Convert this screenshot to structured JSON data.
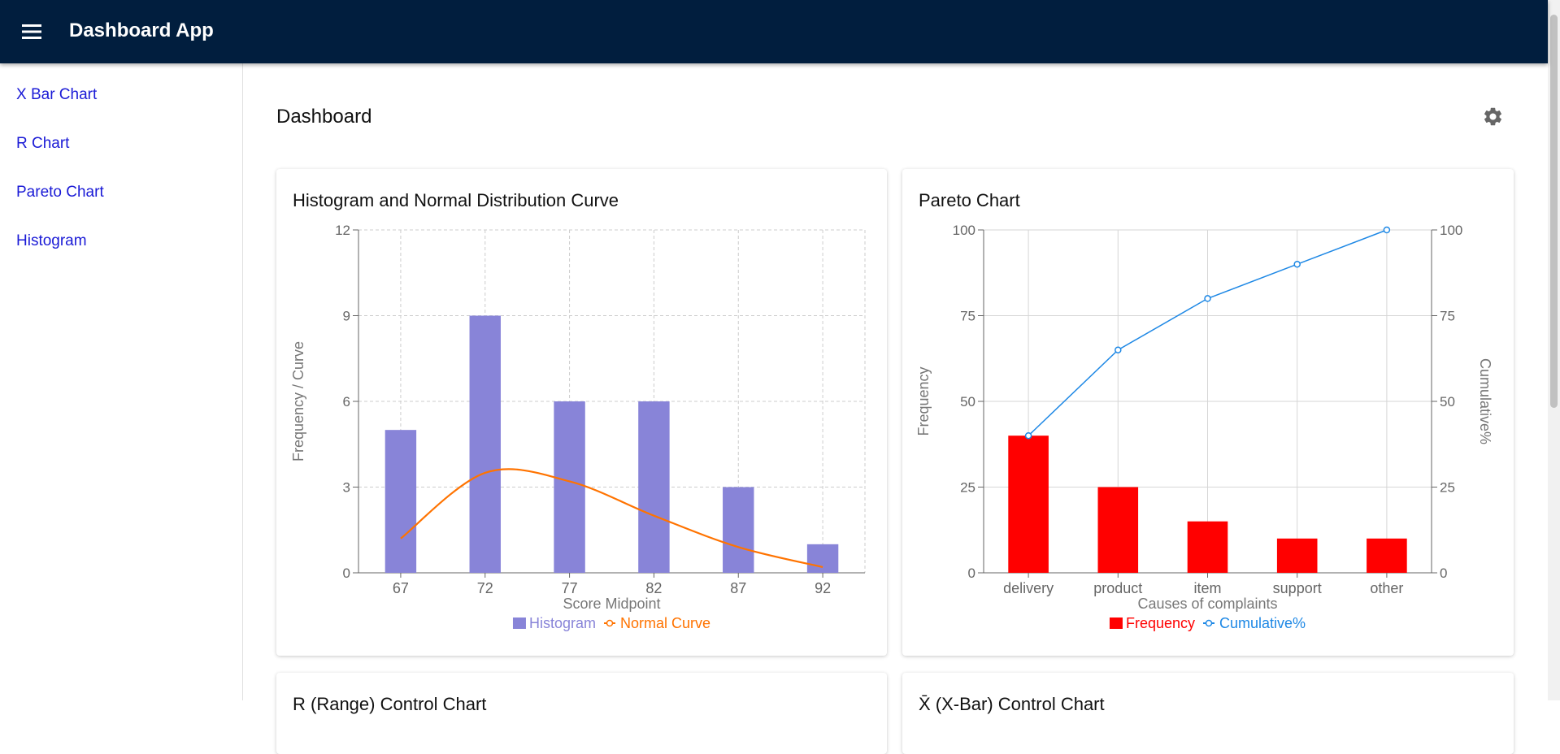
{
  "app_bar": {
    "title": "Dashboard App"
  },
  "nav": [
    "X Bar Chart",
    "R Chart",
    "Pareto Chart",
    "Histogram"
  ],
  "page_title": "Dashboard",
  "chart_data": [
    {
      "type": "bar",
      "title": "Histogram and Normal Distribution Curve",
      "x_label": "Score Midpoint",
      "y_label": "Frequency / Curve",
      "categories": [
        "67",
        "72",
        "77",
        "82",
        "87",
        "92"
      ],
      "series": [
        {
          "name": "Histogram",
          "color": "#8884d8",
          "values": [
            5,
            9,
            6,
            6,
            3,
            1
          ]
        },
        {
          "name": "Normal Curve",
          "type": "line",
          "color": "#ff7300",
          "values": [
            1.2,
            3.5,
            3.2,
            2.0,
            0.9,
            0.2
          ]
        }
      ],
      "ylim": [
        0,
        12
      ],
      "yticks": [
        0,
        3,
        6,
        9,
        12
      ],
      "grid": true,
      "grid_style": "dashed",
      "legend": "bottom"
    },
    {
      "type": "bar",
      "title": "Pareto Chart",
      "x_label": "Causes of complaints",
      "y_label": "Frequency",
      "y2_label": "Cumulative%",
      "categories": [
        "delivery",
        "product",
        "item",
        "support",
        "other"
      ],
      "series": [
        {
          "name": "Frequency",
          "color": "#ff0000",
          "values": [
            40,
            25,
            15,
            10,
            10
          ]
        },
        {
          "name": "Cumulative%",
          "type": "line",
          "axis": "y2",
          "color": "#1e88e5",
          "values": [
            40,
            65,
            80,
            90,
            100
          ]
        }
      ],
      "ylim": [
        0,
        100
      ],
      "yticks": [
        0,
        25,
        50,
        75,
        100
      ],
      "y2lim": [
        0,
        100
      ],
      "y2ticks": [
        0,
        25,
        50,
        75,
        100
      ],
      "grid": true,
      "grid_style": "solid",
      "legend": "bottom"
    }
  ],
  "more_cards": [
    "R (Range) Control Chart",
    "X̄ (X-Bar) Control Chart"
  ]
}
